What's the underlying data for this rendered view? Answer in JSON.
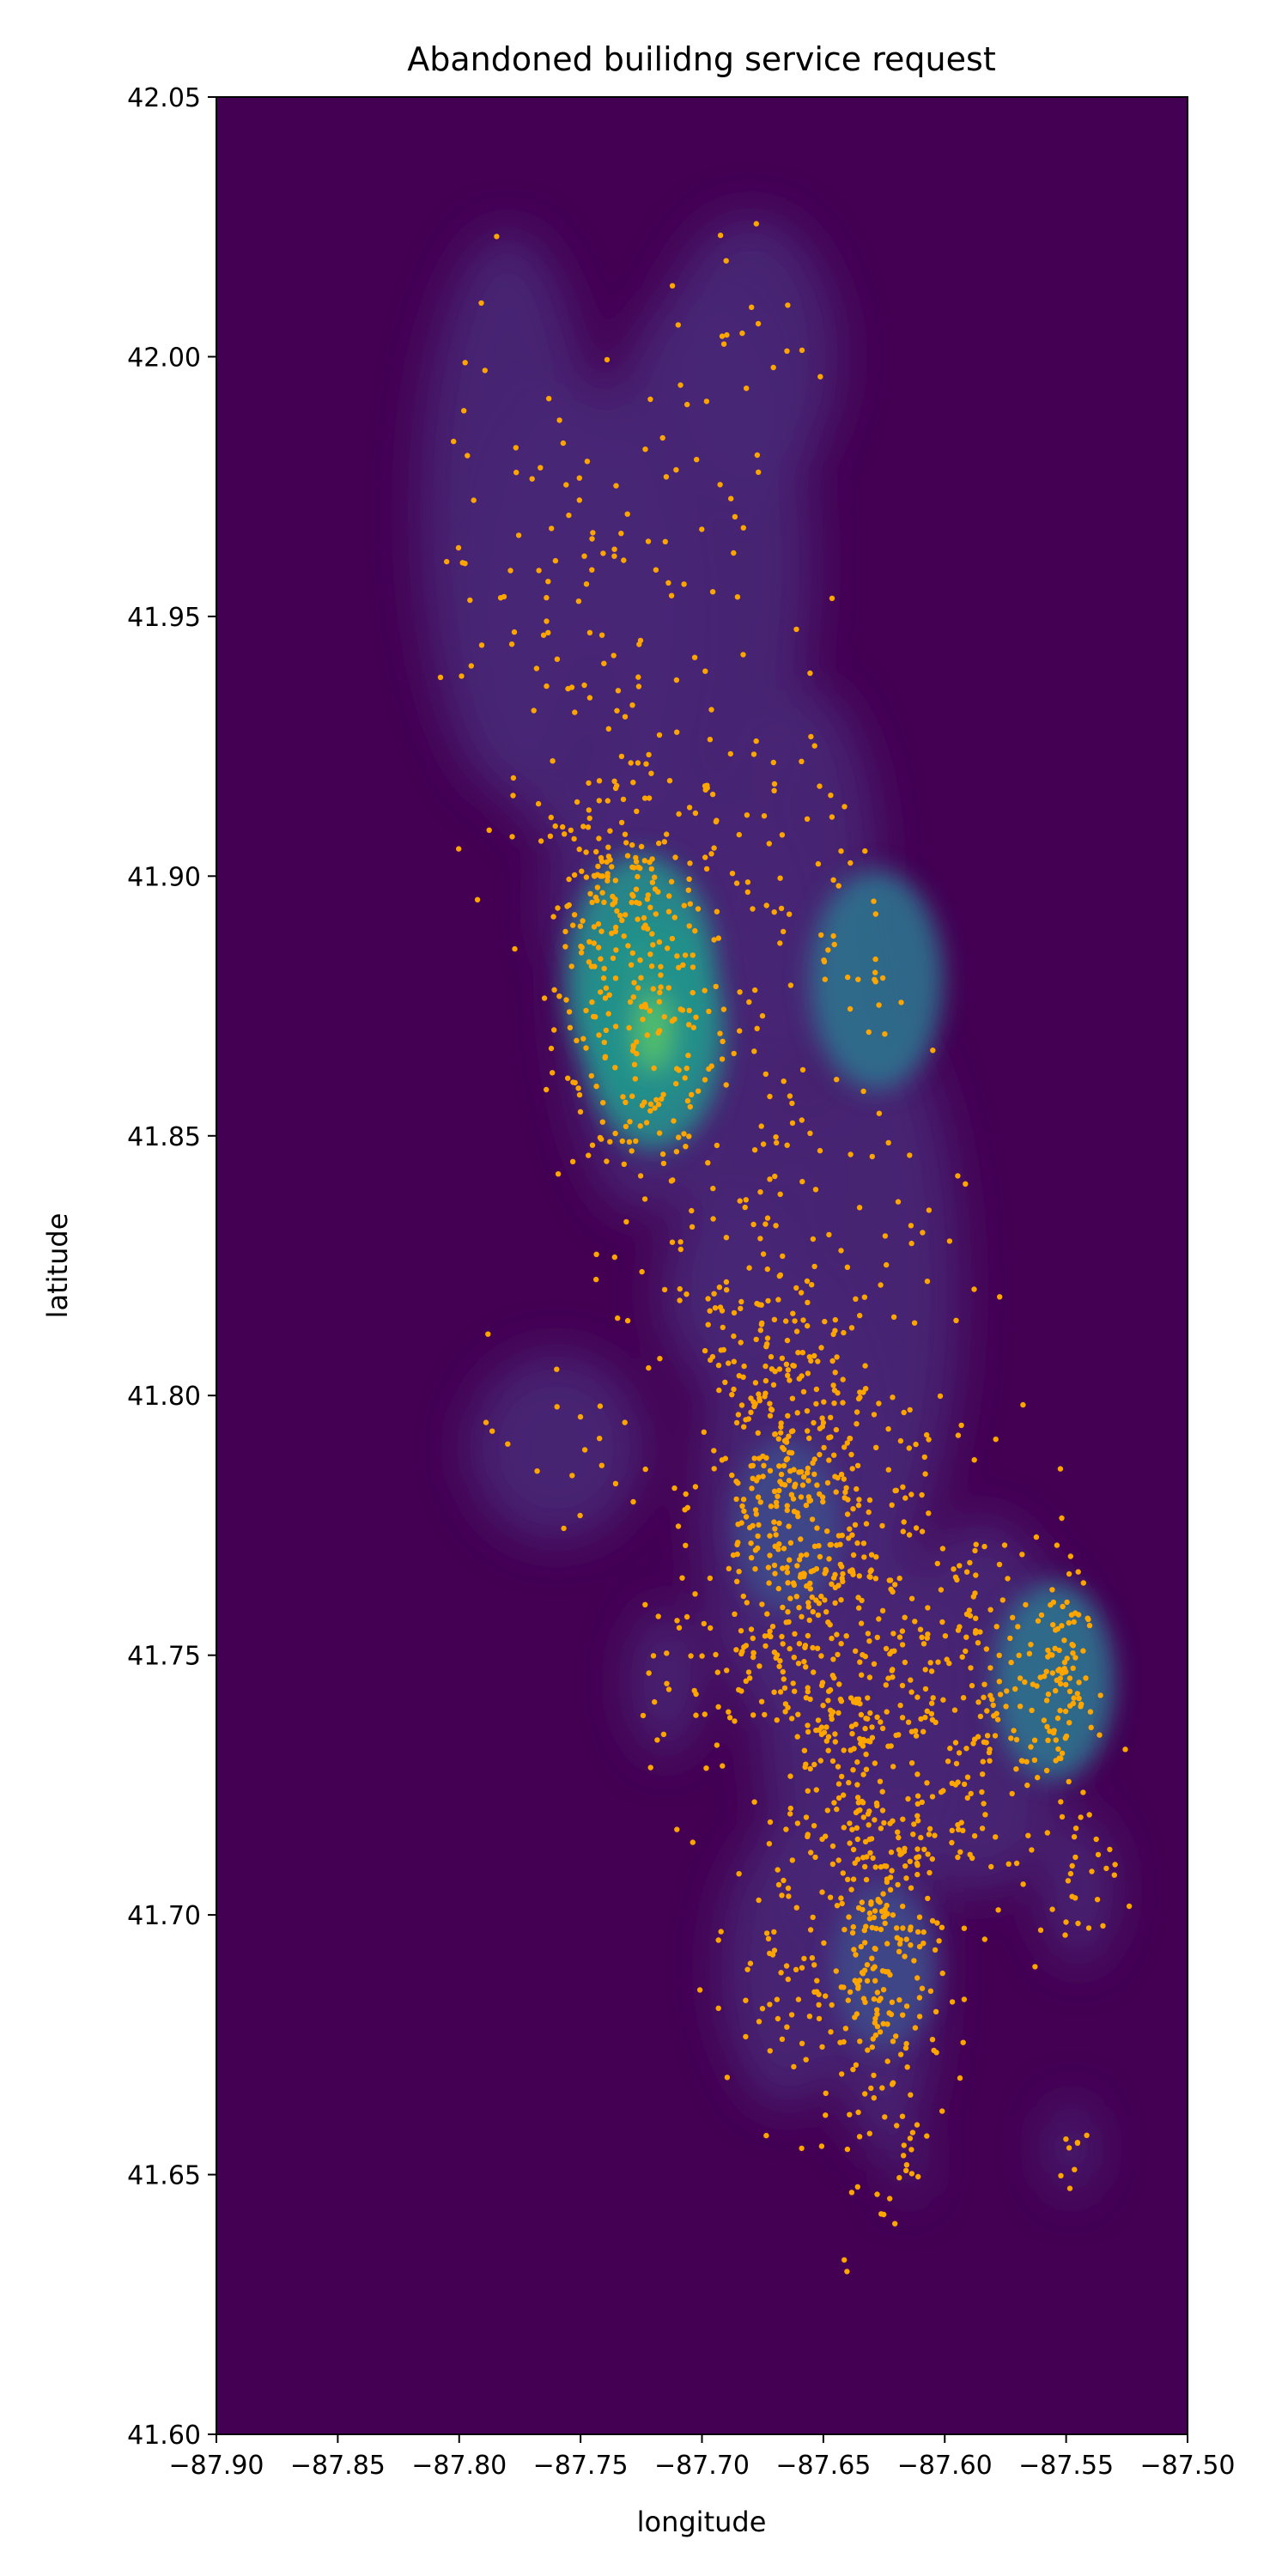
{
  "chart_data": {
    "type": "scatter",
    "title": "Abandoned builidng service request",
    "xlabel": "longitude",
    "ylabel": "latitude",
    "xlim": [
      -87.9,
      -87.5
    ],
    "ylim": [
      41.6,
      42.05
    ],
    "x_ticks": [
      -87.9,
      -87.85,
      -87.8,
      -87.75,
      -87.7,
      -87.65,
      -87.6,
      -87.55,
      -87.5
    ],
    "x_tick_labels": [
      "−87.90",
      "−87.85",
      "−87.80",
      "−87.75",
      "−87.70",
      "−87.65",
      "−87.60",
      "−87.55",
      "−87.50"
    ],
    "y_ticks": [
      41.6,
      41.65,
      41.7,
      41.75,
      41.8,
      41.85,
      41.9,
      41.95,
      42.0,
      42.05
    ],
    "y_tick_labels": [
      "41.60",
      "41.65",
      "41.70",
      "41.75",
      "41.80",
      "41.85",
      "41.90",
      "41.95",
      "42.00",
      "42.05"
    ],
    "grid": false,
    "colors": {
      "background": "#440154",
      "point": "#ffa500",
      "density_low": "#482878",
      "density_mid": "#3e4a89",
      "density_high": "#21918c",
      "density_peak": "#5ec962"
    },
    "density_peaks": [
      {
        "x": -87.725,
        "y": 41.88,
        "level": 0.95
      },
      {
        "x": -87.72,
        "y": 41.87,
        "level": 0.85
      },
      {
        "x": -87.628,
        "y": 41.88,
        "level": 0.75
      },
      {
        "x": -87.555,
        "y": 41.745,
        "level": 0.6
      },
      {
        "x": -87.665,
        "y": 41.775,
        "level": 0.45
      },
      {
        "x": -87.625,
        "y": 41.69,
        "level": 0.4
      }
    ],
    "clusters": [
      {
        "cx": -87.725,
        "cy": 41.88,
        "sx": 0.018,
        "sy": 0.025,
        "n": 260
      },
      {
        "cx": -87.745,
        "cy": 41.895,
        "sx": 0.01,
        "sy": 0.01,
        "n": 70
      },
      {
        "cx": -87.665,
        "cy": 41.78,
        "sx": 0.02,
        "sy": 0.025,
        "n": 420
      },
      {
        "cx": -87.64,
        "cy": 41.74,
        "sx": 0.02,
        "sy": 0.025,
        "n": 280
      },
      {
        "cx": -87.625,
        "cy": 41.69,
        "sx": 0.012,
        "sy": 0.02,
        "n": 220
      },
      {
        "cx": -87.585,
        "cy": 41.74,
        "sx": 0.02,
        "sy": 0.02,
        "n": 200
      },
      {
        "cx": -87.553,
        "cy": 41.745,
        "sx": 0.006,
        "sy": 0.01,
        "n": 80
      },
      {
        "cx": -87.545,
        "cy": 41.705,
        "sx": 0.008,
        "sy": 0.008,
        "n": 25
      },
      {
        "cx": -87.665,
        "cy": 41.69,
        "sx": 0.015,
        "sy": 0.015,
        "n": 60
      },
      {
        "cx": -87.685,
        "cy": 41.86,
        "sx": 0.015,
        "sy": 0.03,
        "n": 60
      },
      {
        "cx": -87.655,
        "cy": 41.9,
        "sx": 0.015,
        "sy": 0.02,
        "n": 40
      },
      {
        "cx": -87.75,
        "cy": 41.95,
        "sx": 0.025,
        "sy": 0.025,
        "n": 60
      },
      {
        "cx": -87.7,
        "cy": 41.96,
        "sx": 0.025,
        "sy": 0.03,
        "n": 40
      },
      {
        "cx": -87.68,
        "cy": 42.0,
        "sx": 0.02,
        "sy": 0.015,
        "n": 20
      },
      {
        "cx": -87.78,
        "cy": 41.97,
        "sx": 0.02,
        "sy": 0.03,
        "n": 25
      },
      {
        "cx": -87.69,
        "cy": 41.82,
        "sx": 0.015,
        "sy": 0.01,
        "n": 25
      },
      {
        "cx": -87.715,
        "cy": 41.745,
        "sx": 0.008,
        "sy": 0.008,
        "n": 15
      },
      {
        "cx": -87.76,
        "cy": 41.79,
        "sx": 0.02,
        "sy": 0.01,
        "n": 18
      },
      {
        "cx": -87.615,
        "cy": 41.652,
        "sx": 0.003,
        "sy": 0.004,
        "n": 8
      },
      {
        "cx": -87.548,
        "cy": 41.655,
        "sx": 0.005,
        "sy": 0.005,
        "n": 8
      },
      {
        "cx": -87.628,
        "cy": 41.88,
        "sx": 0.003,
        "sy": 0.003,
        "n": 6
      },
      {
        "cx": -87.63,
        "cy": 41.82,
        "sx": 0.02,
        "sy": 0.03,
        "n": 60
      }
    ]
  }
}
